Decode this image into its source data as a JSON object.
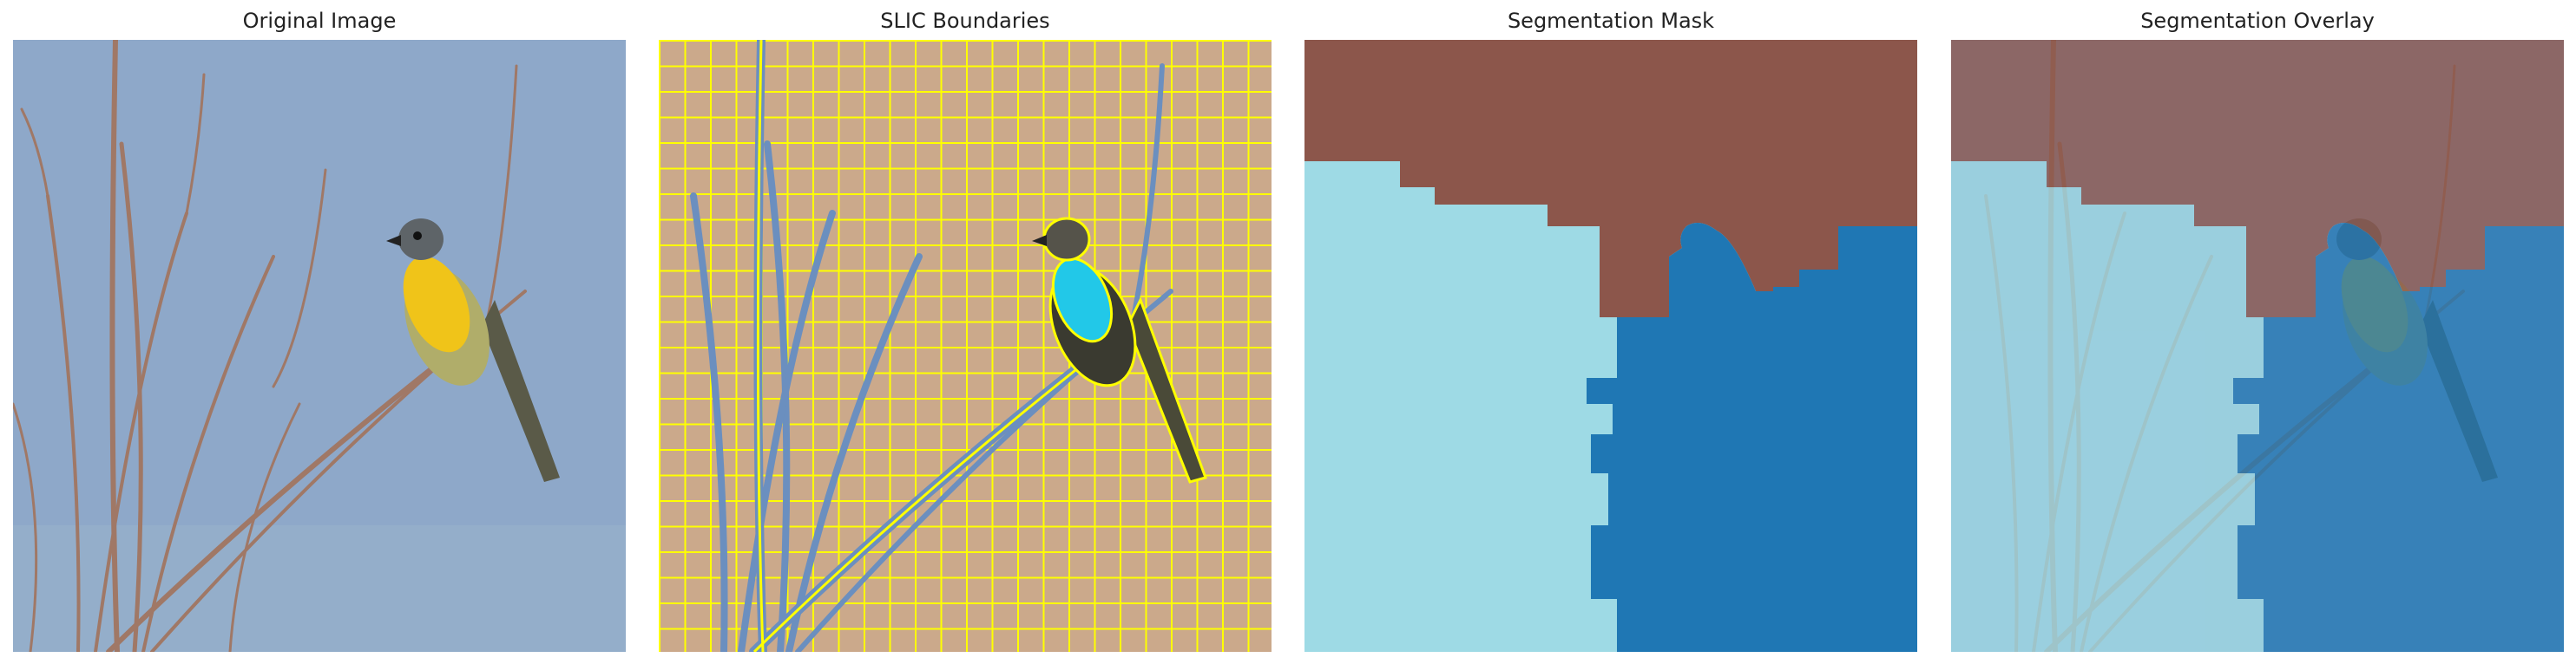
{
  "panels": [
    {
      "title": "Original Image"
    },
    {
      "title": "SLIC Boundaries"
    },
    {
      "title": "Segmentation Mask"
    },
    {
      "title": "Segmentation Overlay"
    }
  ],
  "colors": {
    "sky": "#8ea8c9",
    "slic_sky": "#cba98b",
    "boundary": "#ffff00",
    "seg_brown": "#8c564b",
    "seg_light": "#9edae5",
    "seg_blue": "#1f77b4",
    "bird_yellow": "#f0c419",
    "branch": "#9a7060"
  }
}
